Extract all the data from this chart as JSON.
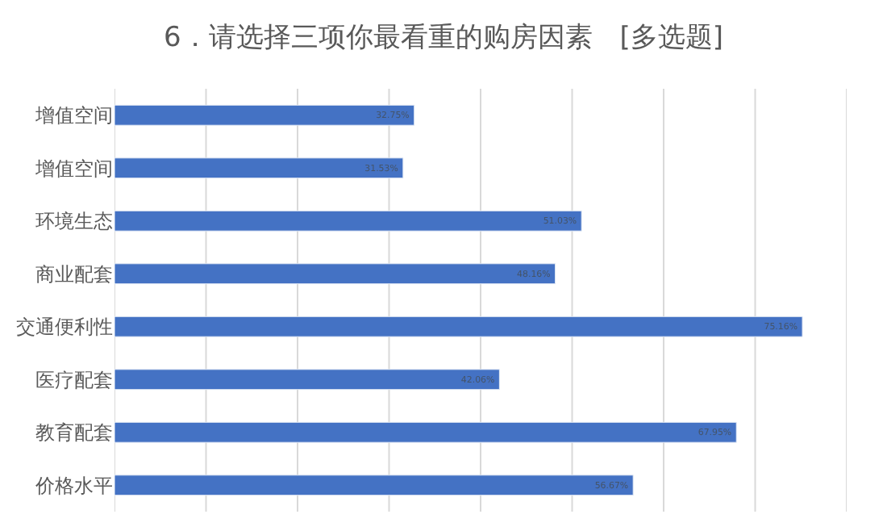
{
  "chart_data": {
    "type": "bar",
    "orientation": "horizontal",
    "title": "6．请选择三项你最看重的购房因素　[多选题]",
    "categories": [
      "增值空间",
      "增值空间",
      "环境生态",
      "商业配套",
      "交通便利性",
      "医疗配套",
      "教育配套",
      "价格水平"
    ],
    "values": [
      32.75,
      31.53,
      51.03,
      48.16,
      75.16,
      42.06,
      67.95,
      56.67
    ],
    "value_labels": [
      "32.75%",
      "31.53%",
      "51.03%",
      "48.16%",
      "75.16%",
      "42.06%",
      "67.95%",
      "56.67%"
    ],
    "color": "#4472c4",
    "xlim": [
      0,
      80
    ],
    "xticks": [
      {
        "value": 0,
        "label": null
      },
      {
        "value": 10,
        "label": null
      },
      {
        "value": 20,
        "label": null
      },
      {
        "value": 30,
        "label": null
      },
      {
        "value": 40,
        "label": null
      },
      {
        "value": 50,
        "label": null
      },
      {
        "value": 60,
        "label": null
      },
      {
        "value": 70,
        "label": null
      },
      {
        "value": 80,
        "label": null
      }
    ],
    "grid": "x",
    "tick_labels": "y",
    "legend": false
  }
}
